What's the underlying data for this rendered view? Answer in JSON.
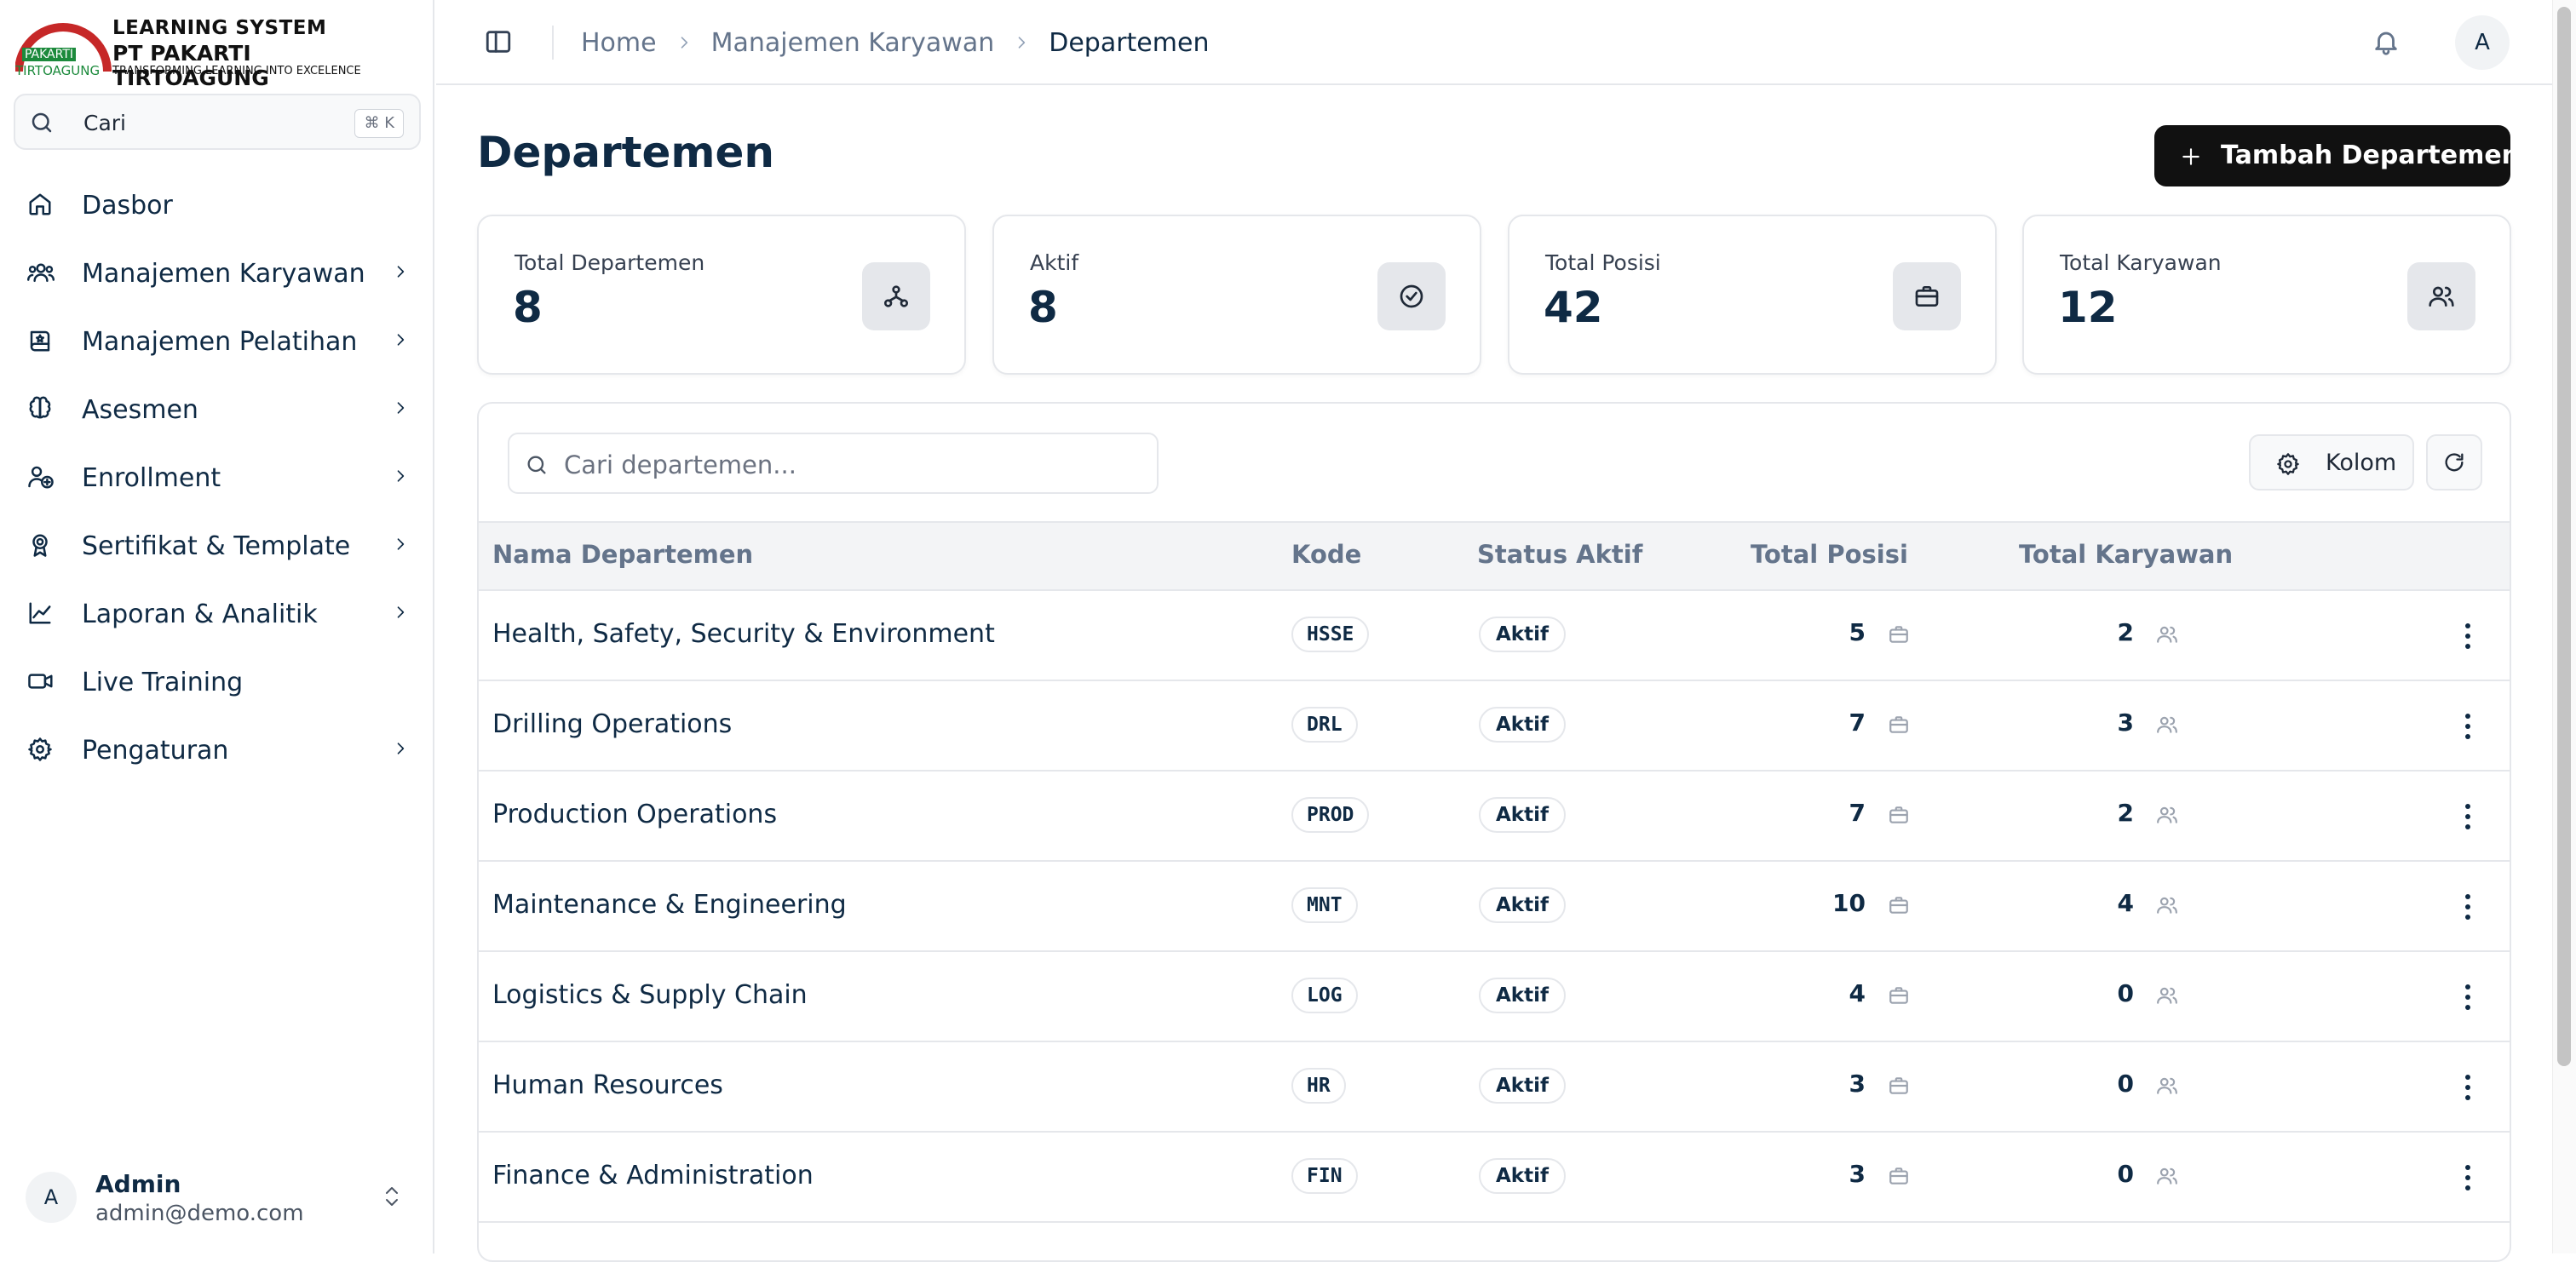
{
  "brand": {
    "line1": "LEARNING SYSTEM",
    "line2": "PT PAKARTI TIRTOAGUNG",
    "tagline": "TRANSFORMING LEARNING INTO EXCELENCE",
    "mark_word1": "PAKARTI",
    "mark_word2": "TIRTOAGUNG"
  },
  "sidebar": {
    "search": {
      "label": "Cari",
      "shortcut": "⌘ K"
    },
    "items": [
      {
        "label": "Dasbor",
        "icon": "home-icon",
        "has_submenu": false
      },
      {
        "label": "Manajemen Karyawan",
        "icon": "users-icon",
        "has_submenu": true
      },
      {
        "label": "Manajemen Pelatihan",
        "icon": "book-icon",
        "has_submenu": true
      },
      {
        "label": "Asesmen",
        "icon": "brain-icon",
        "has_submenu": true
      },
      {
        "label": "Enrollment",
        "icon": "user-plus-icon",
        "has_submenu": true
      },
      {
        "label": "Sertifikat & Template",
        "icon": "award-icon",
        "has_submenu": true
      },
      {
        "label": "Laporan & Analitik",
        "icon": "chart-icon",
        "has_submenu": true
      },
      {
        "label": "Live Training",
        "icon": "video-icon",
        "has_submenu": false
      },
      {
        "label": "Pengaturan",
        "icon": "gear-icon",
        "has_submenu": true
      }
    ],
    "user": {
      "initial": "A",
      "name": "Admin",
      "email": "admin@demo.com"
    }
  },
  "header": {
    "breadcrumb": [
      "Home",
      "Manajemen Karyawan",
      "Departemen"
    ],
    "avatar_initial": "A"
  },
  "page": {
    "title": "Departemen",
    "add_button": "Tambah Departemen"
  },
  "stats": [
    {
      "label": "Total Departemen",
      "value": "8",
      "icon": "hierarchy-icon"
    },
    {
      "label": "Aktif",
      "value": "8",
      "icon": "check-circle-icon"
    },
    {
      "label": "Total Posisi",
      "value": "42",
      "icon": "briefcase-icon"
    },
    {
      "label": "Total Karyawan",
      "value": "12",
      "icon": "users-icon"
    }
  ],
  "table": {
    "search_placeholder": "Cari departemen...",
    "columns_button": "Kolom",
    "headers": [
      "Nama Departemen",
      "Kode",
      "Status Aktif",
      "Total Posisi",
      "Total Karyawan"
    ],
    "rows": [
      {
        "name": "Health, Safety, Security & Environment",
        "code": "HSSE",
        "status": "Aktif",
        "positions": "5",
        "employees": "2"
      },
      {
        "name": "Drilling Operations",
        "code": "DRL",
        "status": "Aktif",
        "positions": "7",
        "employees": "3"
      },
      {
        "name": "Production Operations",
        "code": "PROD",
        "status": "Aktif",
        "positions": "7",
        "employees": "2"
      },
      {
        "name": "Maintenance & Engineering",
        "code": "MNT",
        "status": "Aktif",
        "positions": "10",
        "employees": "4"
      },
      {
        "name": "Logistics & Supply Chain",
        "code": "LOG",
        "status": "Aktif",
        "positions": "4",
        "employees": "0"
      },
      {
        "name": "Human Resources",
        "code": "HR",
        "status": "Aktif",
        "positions": "3",
        "employees": "0"
      },
      {
        "name": "Finance & Administration",
        "code": "FIN",
        "status": "Aktif",
        "positions": "3",
        "employees": "0"
      }
    ]
  },
  "colors": {
    "primary_text": "#0f2a44",
    "button_bg": "#111111",
    "border": "#e5e7eb",
    "logo_red": "#c62828",
    "logo_green": "#1c8a3c"
  }
}
